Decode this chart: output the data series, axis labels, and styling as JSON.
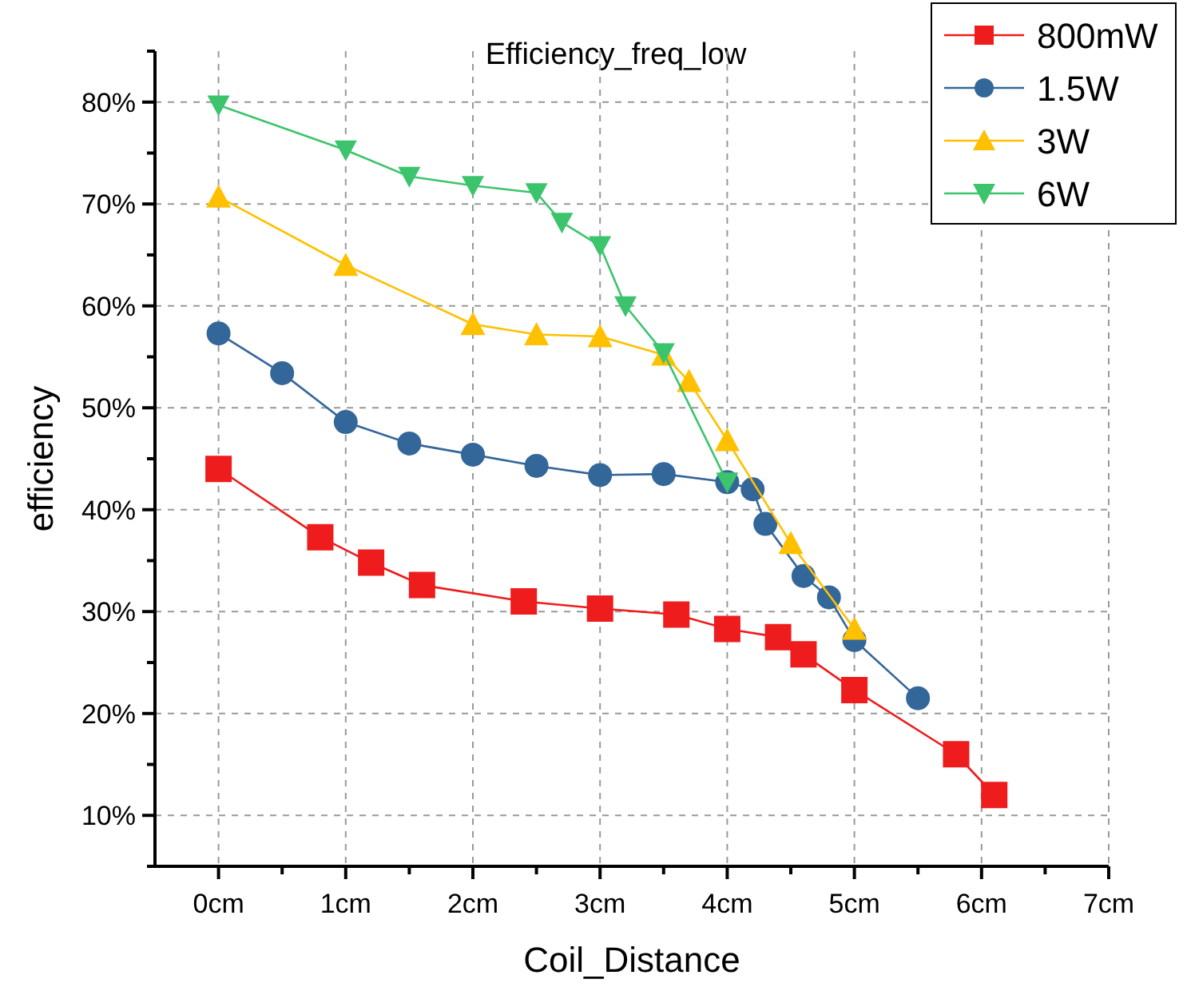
{
  "chart_data": {
    "type": "line",
    "title": "Efficiency_freq_low",
    "xlabel": "Coil_Distance",
    "ylabel": "efficiency",
    "xlim": [
      -0.5,
      7
    ],
    "ylim": [
      5,
      85
    ],
    "xticks": [
      {
        "value": 0,
        "label": "0cm"
      },
      {
        "value": 0.5,
        "label": null
      },
      {
        "value": 1,
        "label": "1cm"
      },
      {
        "value": 1.5,
        "label": null
      },
      {
        "value": 2,
        "label": "2cm"
      },
      {
        "value": 2.5,
        "label": null
      },
      {
        "value": 3,
        "label": "3cm"
      },
      {
        "value": 3.5,
        "label": null
      },
      {
        "value": 4,
        "label": "4cm"
      },
      {
        "value": 4.5,
        "label": null
      },
      {
        "value": 5,
        "label": "5cm"
      },
      {
        "value": 5.5,
        "label": null
      },
      {
        "value": 6,
        "label": "6cm"
      },
      {
        "value": 6.5,
        "label": null
      },
      {
        "value": 7,
        "label": "7cm"
      }
    ],
    "yticks": [
      {
        "value": 5,
        "label": null
      },
      {
        "value": 10,
        "label": "10%"
      },
      {
        "value": 15,
        "label": null
      },
      {
        "value": 20,
        "label": "20%"
      },
      {
        "value": 25,
        "label": null
      },
      {
        "value": 30,
        "label": "30%"
      },
      {
        "value": 35,
        "label": null
      },
      {
        "value": 40,
        "label": "40%"
      },
      {
        "value": 45,
        "label": null
      },
      {
        "value": 50,
        "label": "50%"
      },
      {
        "value": 55,
        "label": null
      },
      {
        "value": 60,
        "label": "60%"
      },
      {
        "value": 65,
        "label": null
      },
      {
        "value": 70,
        "label": "70%"
      },
      {
        "value": 75,
        "label": null
      },
      {
        "value": 80,
        "label": "80%"
      },
      {
        "value": 85,
        "label": null
      }
    ],
    "grid": true,
    "legend": "top right",
    "line_style": "solid",
    "series": [
      {
        "name": "800mW",
        "color": "#ee1c1c",
        "marker": "square",
        "x": [
          0,
          0.8,
          1.2,
          1.6,
          2.4,
          3,
          3.6,
          4,
          4.4,
          4.6,
          5,
          5.8,
          6.1
        ],
        "values": [
          44,
          37.3,
          34.8,
          32.6,
          31,
          30.3,
          29.7,
          28.3,
          27.5,
          25.8,
          22.3,
          16,
          12
        ]
      },
      {
        "name": "1.5W",
        "color": "#336699",
        "marker": "circle",
        "x": [
          0,
          0.5,
          1,
          1.5,
          2,
          2.5,
          3,
          3.5,
          4,
          4.2,
          4.3,
          4.6,
          4.8,
          5,
          5.5
        ],
        "values": [
          57.3,
          53.4,
          48.6,
          46.5,
          45.4,
          44.3,
          43.4,
          43.5,
          42.7,
          42,
          38.6,
          33.5,
          31.4,
          27.2,
          21.5
        ]
      },
      {
        "name": "3W",
        "color": "#ffc000",
        "marker": "triangle",
        "x": [
          0,
          1,
          2,
          2.5,
          3,
          3.5,
          3.7,
          4,
          4.5,
          5
        ],
        "values": [
          70.7,
          64,
          58.2,
          57.2,
          57,
          55.2,
          52.6,
          46.8,
          36.7,
          28.3
        ]
      },
      {
        "name": "6W",
        "color": "#3cc46c",
        "marker": "triangle-down",
        "x": [
          0,
          1,
          1.5,
          2,
          2.5,
          2.7,
          3,
          3.2,
          3.5,
          4
        ],
        "values": [
          79.7,
          75.3,
          72.7,
          71.8,
          71.1,
          68.2,
          65.9,
          60,
          55.4,
          42.7
        ]
      }
    ]
  }
}
